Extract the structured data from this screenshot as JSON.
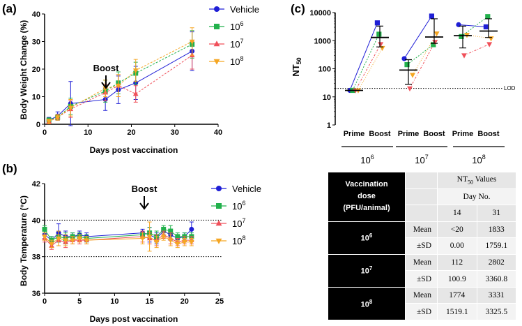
{
  "colors": {
    "vehicle": "#1f1fd6",
    "e6": "#22b14c",
    "e7": "#f0505a",
    "e8": "#f5a623"
  },
  "legend": {
    "vehicle": "Vehicle",
    "e6": "6",
    "e7": "7",
    "e8": "8",
    "base": "10"
  },
  "panel_a": {
    "label": "(a)",
    "boost": "Boost"
  },
  "panel_b": {
    "label": "(b)",
    "boost": "Boost"
  },
  "panel_c": {
    "label": "(c)",
    "lod": "LOD",
    "groups": [
      "6",
      "7",
      "8"
    ],
    "group_base": "10"
  },
  "chart_data": [
    {
      "type": "line",
      "title": "",
      "xlabel": "Days post vaccination",
      "ylabel": "Body Weight Change (%)",
      "xlim": [
        0,
        40
      ],
      "ylim": [
        0,
        40
      ],
      "xticks": [
        "0",
        "10",
        "20",
        "30",
        "40"
      ],
      "yticks": [
        "0",
        "10",
        "20",
        "30",
        "40"
      ],
      "x": [
        1,
        3,
        6,
        14,
        17,
        21,
        34
      ],
      "series": [
        {
          "name": "Vehicle",
          "key": "vehicle",
          "marker": "circle",
          "values": [
            1.5,
            3,
            7.5,
            9,
            12.5,
            15,
            26.5
          ],
          "err": [
            1,
            1.5,
            8,
            4,
            5,
            6,
            7
          ]
        },
        {
          "name": "10^6",
          "key": "e6",
          "marker": "square",
          "values": [
            1.5,
            2.5,
            6.5,
            12,
            15,
            18.5,
            29
          ],
          "err": [
            0.8,
            1,
            3,
            4,
            4,
            4,
            5
          ]
        },
        {
          "name": "10^7",
          "key": "e7",
          "marker": "triangle-up",
          "values": [
            1,
            2.5,
            5.5,
            11.5,
            14,
            11,
            25
          ],
          "err": [
            0.8,
            1,
            3,
            3,
            4,
            3,
            5
          ]
        },
        {
          "name": "10^8",
          "key": "e8",
          "marker": "triangle-down",
          "values": [
            1,
            2.5,
            6,
            13,
            14,
            19.5,
            30
          ],
          "err": [
            0.8,
            1,
            3,
            3,
            4,
            4,
            5
          ]
        }
      ],
      "annotations": [
        {
          "text": "Boost",
          "x": 14
        }
      ]
    },
    {
      "type": "line",
      "title": "",
      "xlabel": "Days post vaccination",
      "ylabel": "Body Temperature (°C)",
      "xlim": [
        0,
        25
      ],
      "ylim": [
        36,
        42
      ],
      "xticks": [
        "0",
        "5",
        "10",
        "15",
        "20",
        "25"
      ],
      "yticks": [
        "36",
        "38",
        "40",
        "42"
      ],
      "reference_lines": [
        38,
        40
      ],
      "x": [
        0,
        1,
        2,
        3,
        4,
        5,
        6,
        14,
        15,
        16,
        17,
        18,
        19,
        20,
        21
      ],
      "series": [
        {
          "name": "Vehicle",
          "key": "vehicle",
          "marker": "circle",
          "values": [
            39.2,
            38.9,
            39.3,
            39.1,
            39.1,
            39.2,
            39.1,
            39.3,
            39.2,
            39.0,
            39.4,
            39.2,
            39.0,
            39.1,
            39.5
          ],
          "err": [
            0.2,
            0.2,
            0.5,
            0.3,
            0.2,
            0.2,
            0.2,
            0.2,
            0.4,
            0.3,
            0.2,
            0.3,
            0.2,
            0.2,
            0.4
          ]
        },
        {
          "name": "10^6",
          "key": "e6",
          "marker": "square",
          "values": [
            39.5,
            38.9,
            39.1,
            39.0,
            39.1,
            39.1,
            39.0,
            39.2,
            39.3,
            39.1,
            39.5,
            39.4,
            39.1,
            39.1,
            39.1
          ],
          "err": [
            0.2,
            0.2,
            0.3,
            0.3,
            0.2,
            0.2,
            0.2,
            0.2,
            0.3,
            0.3,
            0.2,
            0.3,
            0.2,
            0.2,
            0.2
          ]
        },
        {
          "name": "10^7",
          "key": "e7",
          "marker": "triangle-up",
          "values": [
            39.0,
            38.6,
            38.9,
            38.8,
            38.9,
            38.9,
            38.9,
            39.1,
            39.0,
            38.9,
            39.2,
            39.0,
            38.8,
            38.9,
            38.9
          ],
          "err": [
            0.2,
            0.2,
            0.3,
            0.3,
            0.2,
            0.2,
            0.2,
            0.3,
            0.3,
            0.3,
            0.2,
            0.3,
            0.2,
            0.2,
            0.2
          ]
        },
        {
          "name": "10^8",
          "key": "e8",
          "marker": "triangle-down",
          "values": [
            39.1,
            38.7,
            39.0,
            38.9,
            38.9,
            39.0,
            38.9,
            39.0,
            39.1,
            38.8,
            39.1,
            38.9,
            38.7,
            38.8,
            38.8
          ],
          "err": [
            0.2,
            0.2,
            0.4,
            0.3,
            0.2,
            0.2,
            0.2,
            0.3,
            0.8,
            0.3,
            0.2,
            0.3,
            0.2,
            0.2,
            0.2
          ]
        }
      ],
      "annotations": [
        {
          "text": "Boost",
          "x": 14.5
        }
      ]
    },
    {
      "type": "scatter",
      "title": "",
      "ylabel": "NT50",
      "yscale": "log",
      "ylim": [
        1,
        10000
      ],
      "yticks": [
        "1",
        "10",
        "100",
        "1000",
        "10000"
      ],
      "categories": [
        "Prime",
        "Boost",
        "Prime",
        "Boost",
        "Prime",
        "Boost"
      ],
      "lod": 20,
      "groups": [
        {
          "name": "10^6",
          "prime": {
            "vehicle": 17,
            "e6": 17,
            "e7": 17,
            "e8": 17,
            "mean": 17,
            "sd_low": 17,
            "sd_high": 17
          },
          "boost": {
            "vehicle": 4300,
            "e6": 1700,
            "e7": 750,
            "e8": 550,
            "mean": 1300,
            "sd_low": 600,
            "sd_high": 3300
          }
        },
        {
          "name": "10^7",
          "prime": {
            "vehicle": 230,
            "e6": 140,
            "e7": 20,
            "e8": 60,
            "mean": 90,
            "sd_low": 28,
            "sd_high": 210
          },
          "boost": {
            "vehicle": 7500,
            "e6": 720,
            "e7": 900,
            "e8": 1800,
            "mean": 1350,
            "sd_low": 800,
            "sd_high": 6000
          }
        },
        {
          "name": "10^8",
          "prime": {
            "vehicle": 3700,
            "e6": 1400,
            "e7": 300,
            "e8": 1600,
            "mean": 1500,
            "sd_low": 550,
            "sd_high": 3300
          },
          "boost": {
            "vehicle": 3100,
            "e6": 7200,
            "e7": 750,
            "e8": 1200,
            "mean": 2200,
            "sd_low": 1300,
            "sd_high": 6000
          }
        }
      ]
    },
    {
      "type": "table",
      "header": {
        "c1a": "Vaccination",
        "c1b": "dose",
        "c1c": "(PFU/animal)",
        "nt": "NT",
        "nt_sub": "50",
        "nt_tail": " Values",
        "dayno": "Day No.",
        "d14": "14",
        "d31": "31"
      },
      "rows": [
        {
          "group": "10",
          "exp": "6",
          "mean_label": "Mean",
          "mean14": "<20",
          "mean31": "1833",
          "sd_label": "±SD",
          "sd14": "0.00",
          "sd31": "1759.1"
        },
        {
          "group": "10",
          "exp": "7",
          "mean_label": "Mean",
          "mean14": "112",
          "mean31": "2802",
          "sd_label": "±SD",
          "sd14": "100.9",
          "sd31": "3360.8"
        },
        {
          "group": "10",
          "exp": "8",
          "mean_label": "Mean",
          "mean14": "1774",
          "mean31": "3331",
          "sd_label": "±SD",
          "sd14": "1519.1",
          "sd31": "3325.5"
        }
      ]
    }
  ]
}
